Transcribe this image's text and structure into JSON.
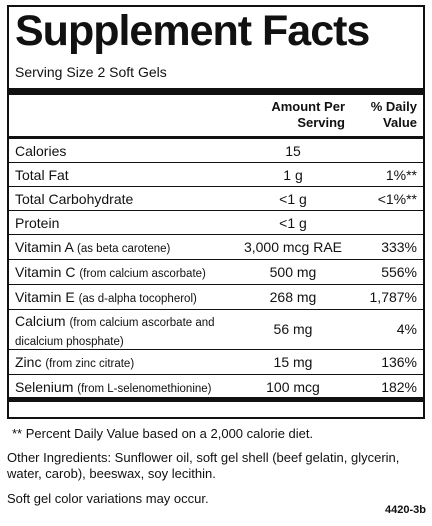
{
  "title": "Supplement Facts",
  "serving_size": "Serving Size 2 Soft Gels",
  "header": {
    "amount_line1": "Amount Per",
    "amount_line2": "Serving",
    "dv_line1": "% Daily",
    "dv_line2": "Value"
  },
  "rows": [
    {
      "name": "Calories",
      "detail": "",
      "detail2": "",
      "amount": "15",
      "dv": ""
    },
    {
      "name": "Total Fat",
      "detail": "",
      "detail2": "",
      "amount": "1 g",
      "dv": "1%**"
    },
    {
      "name": "Total Carbohydrate",
      "detail": "",
      "detail2": "",
      "amount": "<1 g",
      "dv": "<1%**"
    },
    {
      "name": "Protein",
      "detail": "",
      "detail2": "",
      "amount": "<1 g",
      "dv": ""
    },
    {
      "name": "Vitamin A",
      "detail": "(as beta carotene)",
      "detail2": "",
      "amount": "3,000 mcg RAE",
      "dv": "333%"
    },
    {
      "name": "Vitamin C",
      "detail": "(from calcium ascorbate)",
      "detail2": "",
      "amount": "500 mg",
      "dv": "556%"
    },
    {
      "name": "Vitamin E",
      "detail": "(as d-alpha tocopherol)",
      "detail2": "",
      "amount": "268 mg",
      "dv": "1,787%"
    },
    {
      "name": "Calcium",
      "detail": "(from calcium ascorbate and",
      "detail2": "dicalcium phosphate)",
      "amount": "56 mg",
      "dv": "4%"
    },
    {
      "name": "Zinc",
      "detail": "(from zinc citrate)",
      "detail2": "",
      "amount": "15 mg",
      "dv": "136%"
    },
    {
      "name": "Selenium",
      "detail": "(from L-selenomethionine)",
      "detail2": "",
      "amount": "100 mcg",
      "dv": "182%"
    }
  ],
  "footnote": "** Percent Daily Value based on a 2,000 calorie diet.",
  "other_ingredients": "Other Ingredients: Sunflower oil, soft gel shell (beef gelatin, glycerin, water, carob), beeswax, soy lecithin.",
  "color_note": "Soft gel color variations may occur.",
  "code": "4420-3b"
}
